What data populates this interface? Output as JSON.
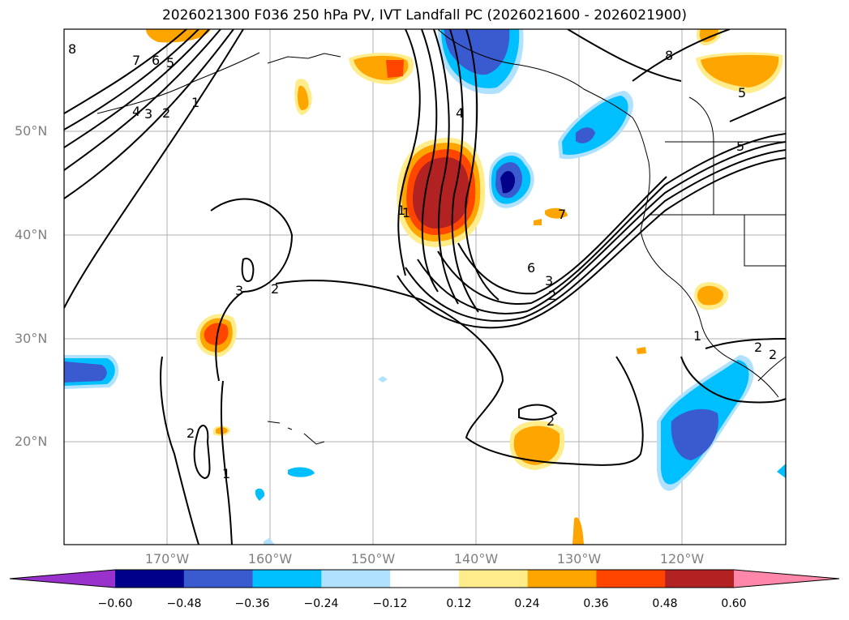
{
  "title": "2026021300 F036 250 hPa PV, IVT Landfall PC (2026021600 - 2026021900)",
  "map": {
    "projection": "cylindrical",
    "lon_range": [
      180,
      110
    ],
    "lat_range": [
      10,
      60
    ],
    "grid": true,
    "lat_labels": [
      "50°N",
      "40°N",
      "30°N",
      "20°N"
    ],
    "lon_labels": [
      "170°W",
      "160°W",
      "150°W",
      "140°W",
      "130°W",
      "120°W"
    ],
    "contour_labels": [
      "8",
      "7",
      "6",
      "5",
      "4",
      "3",
      "2",
      "1",
      "1",
      "2",
      "3",
      "2",
      "4",
      "1",
      "2",
      "3",
      "6",
      "7",
      "5",
      "1",
      "2",
      "2",
      "1",
      "2",
      "8",
      "5"
    ]
  },
  "colorbar": {
    "ticks": [
      "−0.60",
      "−0.48",
      "−0.36",
      "−0.24",
      "−0.12",
      "0.12",
      "0.24",
      "0.36",
      "0.48",
      "0.60"
    ],
    "colors": [
      "#9932cc",
      "#00008b",
      "#3a5bcf",
      "#00bfff",
      "#b0e2ff",
      "#ffffff",
      "#ffec8b",
      "#ffa500",
      "#ff4500",
      "#b22222",
      "#ff88aa"
    ],
    "extend": "both"
  }
}
